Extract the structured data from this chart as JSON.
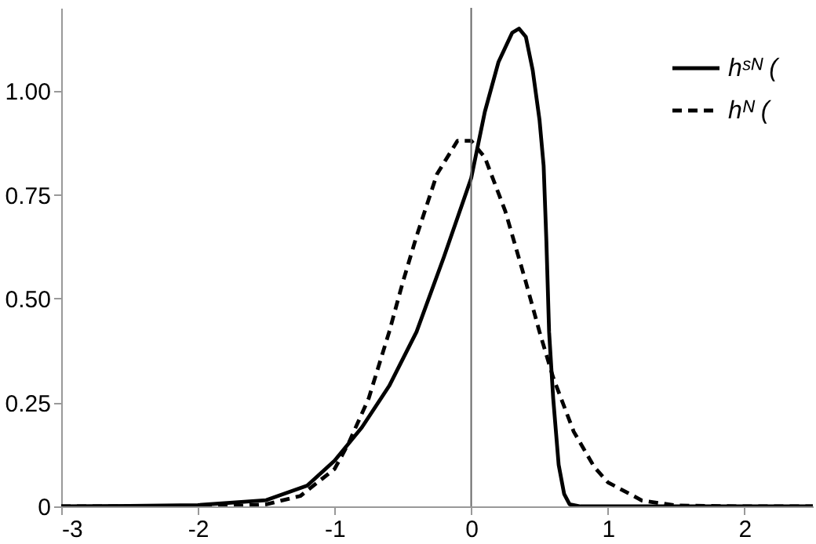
{
  "chart_data": {
    "type": "line",
    "xlim": [
      -3,
      2.5
    ],
    "ylim": [
      0,
      1.2
    ],
    "xticks": [
      -3,
      -2,
      -1,
      0,
      1,
      2
    ],
    "yticks": [
      0,
      0.25,
      {
        "value": 0.5,
        "label": "0.50"
      },
      0.75,
      {
        "value": 1,
        "label": "1.00"
      }
    ],
    "grid": false,
    "legend": "top right",
    "marker": "none",
    "ref_lines": [
      {
        "axis": "x",
        "value": 0,
        "color": "#666666"
      }
    ],
    "series": [
      {
        "name": "hˢᴺ (",
        "color": "#000000",
        "line_style": "solid",
        "x": [
          -3,
          -2.5,
          -2,
          -1.5,
          -1.2,
          -1,
          -0.8,
          -0.6,
          -0.4,
          -0.2,
          0,
          0.1,
          0.2,
          0.3,
          0.35,
          0.4,
          0.45,
          0.5,
          0.53,
          0.55,
          0.57,
          0.6,
          0.64,
          0.68,
          0.72,
          0.8,
          1,
          1.5,
          2,
          2.5
        ],
        "values": [
          0,
          0.001,
          0.003,
          0.015,
          0.05,
          0.11,
          0.19,
          0.29,
          0.42,
          0.6,
          0.79,
          0.95,
          1.07,
          1.14,
          1.15,
          1.13,
          1.05,
          0.93,
          0.82,
          0.64,
          0.42,
          0.26,
          0.1,
          0.03,
          0.005,
          0,
          0,
          0,
          0,
          0
        ]
      },
      {
        "name": "hᴺ (",
        "color": "#000000",
        "line_style": "dashed",
        "x": [
          -3,
          -2.5,
          -2,
          -1.75,
          -1.5,
          -1.25,
          -1,
          -0.9,
          -0.75,
          -0.6,
          -0.5,
          -0.4,
          -0.25,
          -0.1,
          0,
          0.1,
          0.25,
          0.4,
          0.5,
          0.6,
          0.75,
          0.9,
          1,
          1.25,
          1.5,
          2,
          2.5
        ],
        "values": [
          0,
          0,
          0,
          0.001,
          0.005,
          0.025,
          0.09,
          0.15,
          0.26,
          0.42,
          0.54,
          0.65,
          0.8,
          0.88,
          0.88,
          0.84,
          0.71,
          0.54,
          0.42,
          0.31,
          0.18,
          0.095,
          0.058,
          0.014,
          0.002,
          0,
          0
        ]
      }
    ]
  }
}
